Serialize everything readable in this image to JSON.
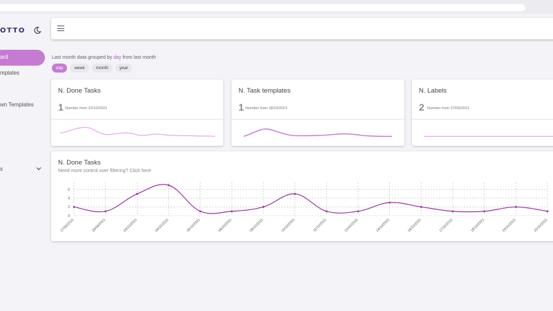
{
  "sidebar": {
    "logo": "OTTO",
    "theme_icon": "moon-icon",
    "active_item": "ard",
    "items": [
      {
        "label": "mplates"
      },
      {
        "label": "wn Templates"
      },
      {
        "label": "s"
      }
    ],
    "chevron_icon": "chevron-down-icon"
  },
  "topbar": {
    "menu_icon": "hamburger-icon"
  },
  "filter": {
    "prefix": "Last month data grouped by ",
    "highlight": "day",
    "suffix": " from last month",
    "options": [
      {
        "label": "day",
        "active": true
      },
      {
        "label": "week",
        "active": false
      },
      {
        "label": "month",
        "active": false
      },
      {
        "label": "year",
        "active": false
      }
    ]
  },
  "cards": [
    {
      "title": "N. Done Tasks",
      "value": "1",
      "subtitle": "Number from 22/10/2021"
    },
    {
      "title": "N. Task templates",
      "value": "1",
      "subtitle": "Number from 18/10/2021"
    },
    {
      "title": "N. Labels",
      "value": "2",
      "subtitle": "Number from 27/09/2021"
    }
  ],
  "colors": {
    "accent": "#c67bd3",
    "line": "#9b2fa8",
    "spark": "#e8a8f0"
  },
  "chart_data": {
    "type": "line",
    "title": "N. Done Tasks",
    "subtitle": "Need more control over filtering? Click here",
    "categories": [
      "27/09/2021",
      "29/09/2021",
      "03/10/2021",
      "04/10/2021",
      "05/10/2021",
      "06/10/2021",
      "08/10/2021",
      "10/10/2021",
      "11/10/2021",
      "13/10/2021",
      "14/10/2021",
      "16/10/2021",
      "17/10/2021",
      "18/10/2021",
      "20/10/2021",
      "22/10/2021"
    ],
    "values": [
      2,
      1,
      5,
      7,
      1,
      1,
      2,
      5,
      1,
      1,
      3,
      2,
      1,
      1,
      2,
      1
    ],
    "yticks": [
      0,
      2,
      4,
      6
    ],
    "ylim": [
      0,
      7
    ],
    "grid": true
  }
}
